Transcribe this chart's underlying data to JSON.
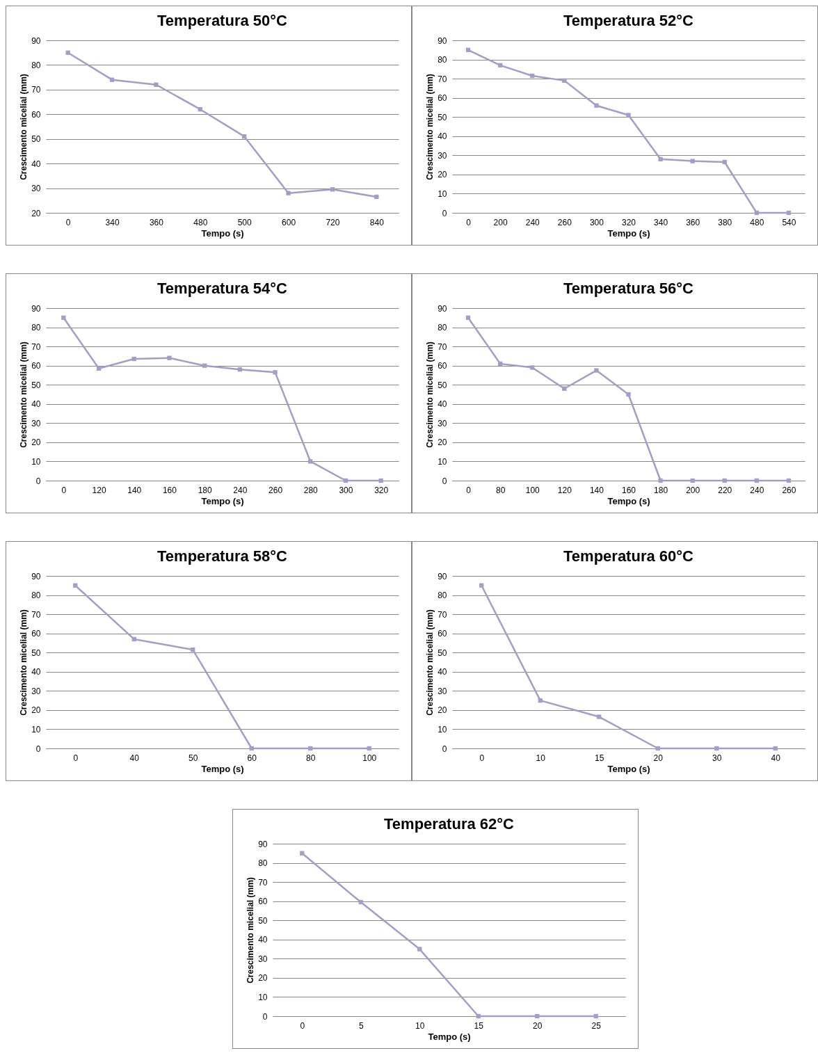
{
  "chart_data": [
    {
      "type": "line",
      "title": "Temperatura 50°C",
      "xlabel": "Tempo (s)",
      "ylabel": "Crescimento micelial (mm)",
      "categories": [
        "0",
        "340",
        "360",
        "480",
        "500",
        "600",
        "720",
        "840"
      ],
      "series": [
        {
          "color": "#a59cc8",
          "values": [
            85,
            74,
            72,
            62,
            51,
            28,
            29.5,
            26.5
          ]
        }
      ],
      "ylim": [
        20,
        90
      ],
      "yticks": [
        20,
        30,
        40,
        50,
        60,
        70,
        80,
        90
      ],
      "grid": "y",
      "marker": "square",
      "line_style": "solid"
    },
    {
      "type": "line",
      "title": "Temperatura 52°C",
      "xlabel": "Tempo (s)",
      "ylabel": "Crescimento micelial (mm)",
      "categories": [
        "0",
        "200",
        "240",
        "260",
        "300",
        "320",
        "340",
        "360",
        "380",
        "480",
        "540"
      ],
      "series": [
        {
          "color": "#a59cc8",
          "values": [
            85,
            77,
            71.5,
            69,
            56,
            51,
            28,
            27,
            26.5,
            0,
            0
          ]
        }
      ],
      "ylim": [
        0,
        90
      ],
      "yticks": [
        0,
        10,
        20,
        30,
        40,
        50,
        60,
        70,
        80,
        90
      ],
      "grid": "y",
      "marker": "square",
      "line_style": "solid"
    },
    {
      "type": "line",
      "title": "Temperatura 54°C",
      "xlabel": "Tempo (s)",
      "ylabel": "Crescimento micelial (mm)",
      "categories": [
        "0",
        "120",
        "140",
        "160",
        "180",
        "240",
        "260",
        "280",
        "300",
        "320"
      ],
      "series": [
        {
          "color": "#a59cc8",
          "values": [
            85,
            58.5,
            63.5,
            64,
            60,
            58,
            56.5,
            10,
            0,
            0
          ]
        }
      ],
      "ylim": [
        0,
        90
      ],
      "yticks": [
        0,
        10,
        20,
        30,
        40,
        50,
        60,
        70,
        80,
        90
      ],
      "grid": "y",
      "marker": "square",
      "line_style": "solid"
    },
    {
      "type": "line",
      "title": "Temperatura 56°C",
      "xlabel": "Tempo (s)",
      "ylabel": "Crescimento micelial (mm)",
      "categories": [
        "0",
        "80",
        "100",
        "120",
        "140",
        "160",
        "180",
        "200",
        "220",
        "240",
        "260"
      ],
      "series": [
        {
          "color": "#a59cc8",
          "values": [
            85,
            61,
            59,
            48,
            57.5,
            45,
            0,
            0,
            0,
            0,
            0
          ]
        }
      ],
      "ylim": [
        0,
        90
      ],
      "yticks": [
        0,
        10,
        20,
        30,
        40,
        50,
        60,
        70,
        80,
        90
      ],
      "grid": "y",
      "marker": "square",
      "line_style": "solid"
    },
    {
      "type": "line",
      "title": "Temperatura 58°C",
      "xlabel": "Tempo (s)",
      "ylabel": "Crescimento micelial (mm)",
      "categories": [
        "0",
        "40",
        "50",
        "60",
        "80",
        "100"
      ],
      "series": [
        {
          "color": "#a59cc8",
          "values": [
            85,
            57,
            51.5,
            0,
            0,
            0
          ]
        }
      ],
      "ylim": [
        0,
        90
      ],
      "yticks": [
        0,
        10,
        20,
        30,
        40,
        50,
        60,
        70,
        80,
        90
      ],
      "grid": "y",
      "marker": "square",
      "line_style": "solid"
    },
    {
      "type": "line",
      "title": "Temperatura 60°C",
      "xlabel": "Tempo (s)",
      "ylabel": "Crescimento micelial (mm)",
      "categories": [
        "0",
        "10",
        "15",
        "20",
        "30",
        "40"
      ],
      "series": [
        {
          "color": "#a59cc8",
          "values": [
            85,
            25,
            16.5,
            0,
            0,
            0
          ]
        }
      ],
      "ylim": [
        0,
        90
      ],
      "yticks": [
        0,
        10,
        20,
        30,
        40,
        50,
        60,
        70,
        80,
        90
      ],
      "grid": "y",
      "marker": "square",
      "line_style": "solid"
    },
    {
      "type": "line",
      "title": "Temperatura 62°C",
      "xlabel": "Tempo (s)",
      "ylabel": "Crescimento micelial (mm)",
      "categories": [
        "0",
        "5",
        "10",
        "15",
        "20",
        "25"
      ],
      "series": [
        {
          "color": "#a59cc8",
          "values": [
            85,
            59.5,
            35,
            0,
            0,
            0
          ]
        }
      ],
      "ylim": [
        0,
        90
      ],
      "yticks": [
        0,
        10,
        20,
        30,
        40,
        50,
        60,
        70,
        80,
        90
      ],
      "grid": "y",
      "marker": "square",
      "line_style": "solid"
    }
  ]
}
